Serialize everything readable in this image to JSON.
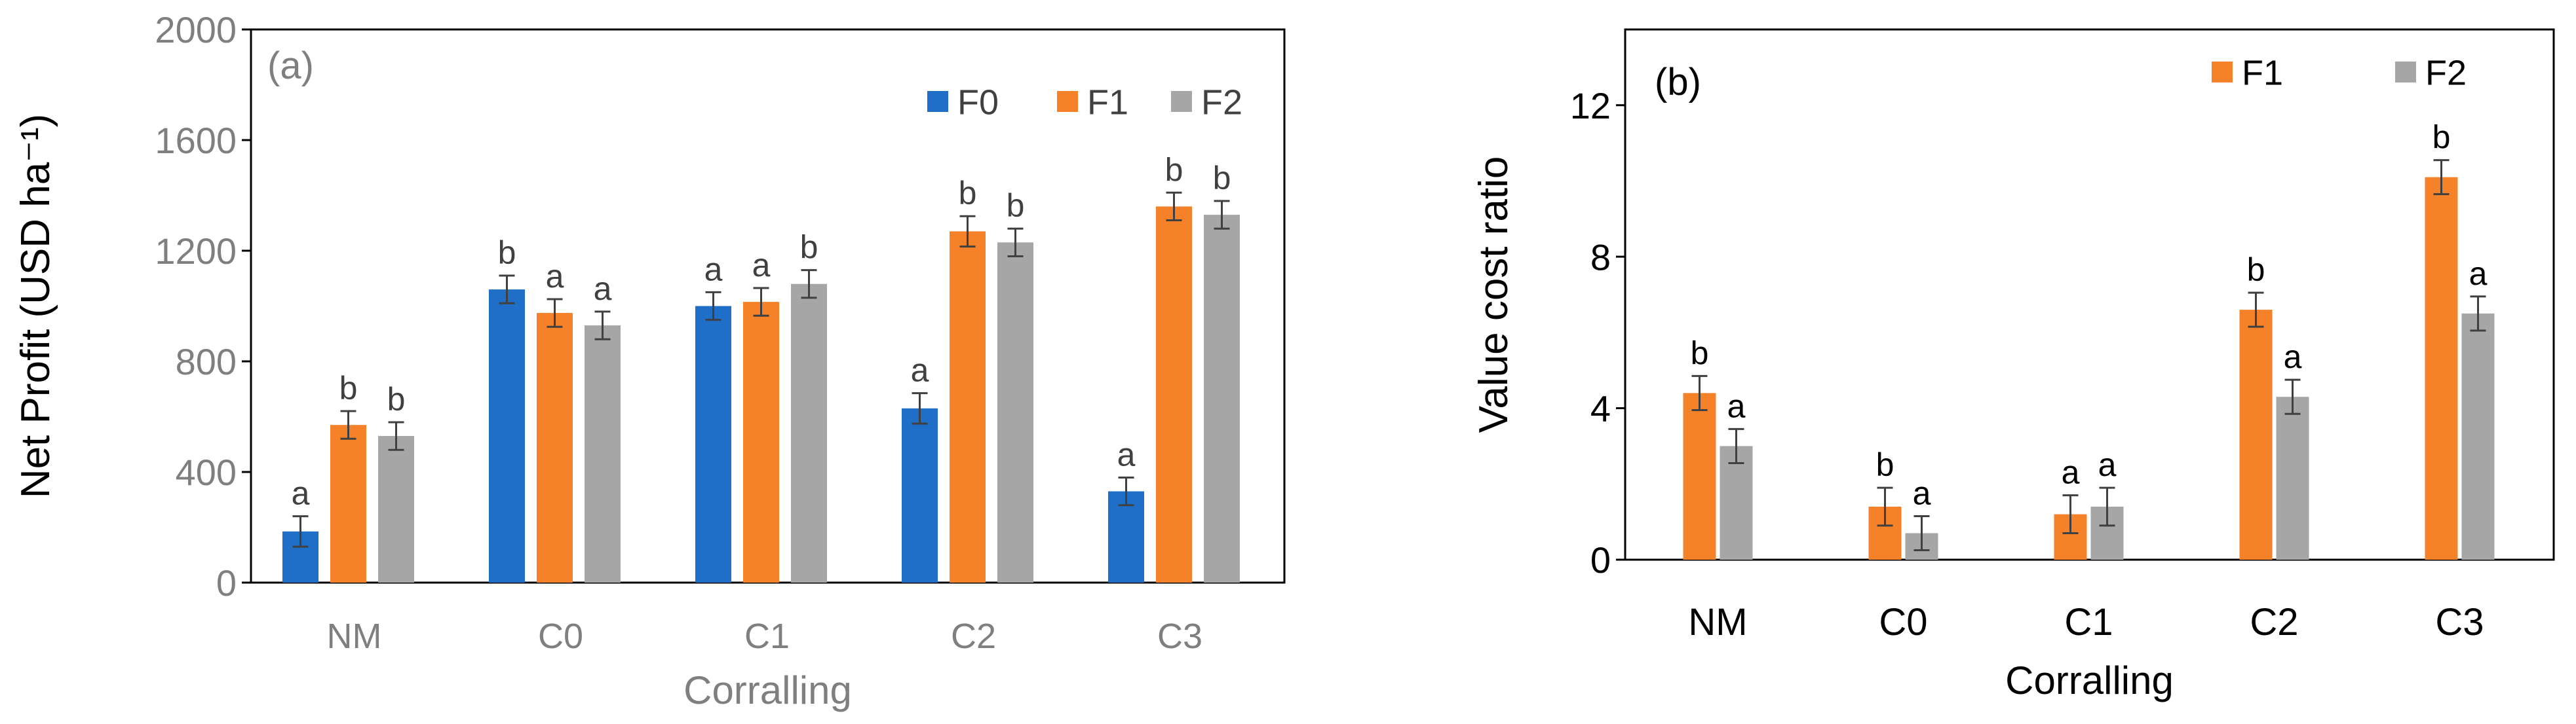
{
  "chart_data": [
    {
      "panel": "(a)",
      "type": "bar",
      "categories": [
        "NM",
        "C0",
        "C1",
        "C2",
        "C3"
      ],
      "xlabel": "Corralling",
      "ylabel": "Net Profit (USD ha⁻¹)",
      "ylim": [
        0,
        2000
      ],
      "yticks": [
        "0",
        "400",
        "800",
        "1200",
        "1600",
        "2000"
      ],
      "legend_position": "top-right",
      "grid": false,
      "series": [
        {
          "name": "F0",
          "color": "#1F6FC8",
          "values": [
            185,
            1060,
            1000,
            630,
            330
          ],
          "errors": [
            55,
            50,
            50,
            55,
            50
          ],
          "letters": [
            "a",
            "b",
            "a",
            "a",
            "a"
          ]
        },
        {
          "name": "F1",
          "color": "#F58229",
          "values": [
            570,
            975,
            1015,
            1270,
            1360
          ],
          "errors": [
            50,
            50,
            50,
            55,
            50
          ],
          "letters": [
            "b",
            "a",
            "a",
            "b",
            "b"
          ]
        },
        {
          "name": "F2",
          "color": "#A6A6A6",
          "values": [
            530,
            930,
            1080,
            1230,
            1330
          ],
          "errors": [
            50,
            50,
            50,
            50,
            50
          ],
          "letters": [
            "b",
            "a",
            "b",
            "b",
            "b"
          ]
        }
      ]
    },
    {
      "panel": "(b)",
      "type": "bar",
      "categories": [
        "NM",
        "C0",
        "C1",
        "C2",
        "C3"
      ],
      "xlabel": "Corralling",
      "ylabel": "Value cost ratio",
      "ylim": [
        0,
        14
      ],
      "yticks": [
        "0",
        "4",
        "8",
        "12"
      ],
      "legend_position": "top-right",
      "grid": false,
      "series": [
        {
          "name": "F1",
          "color": "#F58229",
          "values": [
            4.4,
            1.4,
            1.2,
            6.6,
            10.1
          ],
          "errors": [
            0.45,
            0.5,
            0.5,
            0.45,
            0.45
          ],
          "letters": [
            "b",
            "b",
            "a",
            "b",
            "b"
          ]
        },
        {
          "name": "F2",
          "color": "#A6A6A6",
          "values": [
            3.0,
            0.7,
            1.4,
            4.3,
            6.5
          ],
          "errors": [
            0.45,
            0.45,
            0.5,
            0.45,
            0.45
          ],
          "letters": [
            "a",
            "a",
            "a",
            "a",
            "a"
          ]
        }
      ]
    }
  ]
}
